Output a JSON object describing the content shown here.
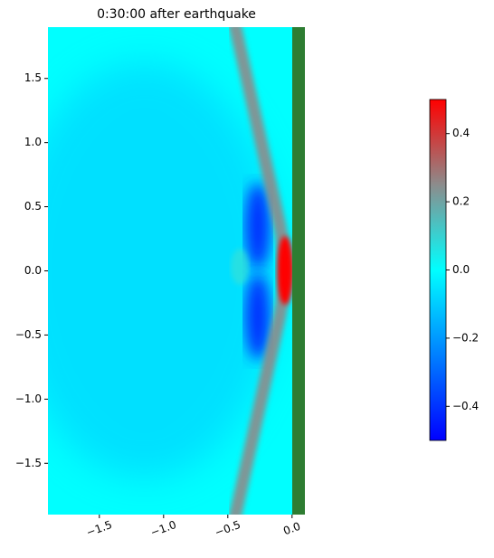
{
  "chart_data": {
    "type": "heatmap",
    "title": "0:30:00 after earthquake",
    "xlim": [
      -1.9,
      0.1
    ],
    "ylim": [
      -1.9,
      1.9
    ],
    "xticks": [
      {
        "value": -1.5,
        "label": "−1.5"
      },
      {
        "value": -1.0,
        "label": "−1.0"
      },
      {
        "value": -0.5,
        "label": "−0.5"
      },
      {
        "value": 0.0,
        "label": "0.0"
      }
    ],
    "yticks": [
      {
        "value": -1.5,
        "label": "−1.5"
      },
      {
        "value": -1.0,
        "label": "−1.0"
      },
      {
        "value": -0.5,
        "label": "−0.5"
      },
      {
        "value": 0.0,
        "label": "0.0"
      },
      0.5,
      {
        "value": 1.0,
        "label": "1.0"
      },
      1.5
    ],
    "clim": [
      -0.5,
      0.5
    ],
    "cticks": [
      {
        "value": -0.4,
        "label": "−0.4"
      },
      {
        "value": -0.2,
        "label": "−0.2"
      },
      {
        "value": 0.0,
        "label": "0.0"
      },
      0.2,
      0.4
    ],
    "colormap": [
      {
        "value": -0.5,
        "color": "#0000ff"
      },
      {
        "value": 0.0,
        "color": "#00ffff"
      },
      {
        "value": 0.25,
        "color": "#8c8c8c"
      },
      {
        "value": 0.5,
        "color": "#ff0000"
      }
    ],
    "land_color": "#2e7d32"
  }
}
